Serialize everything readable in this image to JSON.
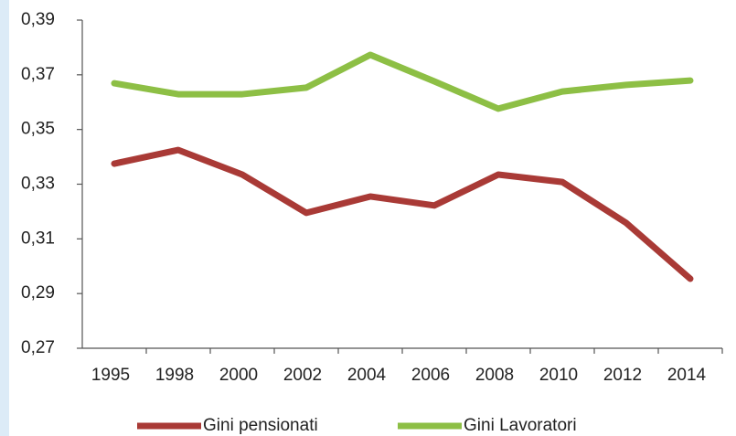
{
  "chart_data": {
    "type": "line",
    "categories": [
      "1995",
      "1998",
      "2000",
      "2002",
      "2004",
      "2006",
      "2008",
      "2010",
      "2012",
      "2014"
    ],
    "series": [
      {
        "name": "Gini pensionati",
        "color": "#a93a36",
        "values": [
          0.3375,
          0.3425,
          0.3335,
          0.3195,
          0.3255,
          0.3222,
          0.3335,
          0.3308,
          0.3158,
          0.2954
        ]
      },
      {
        "name": "Gini Lavoratori",
        "color": "#8dbf45",
        "values": [
          0.3669,
          0.3629,
          0.3629,
          0.3653,
          0.3773,
          0.3676,
          0.3576,
          0.3639,
          0.3663,
          0.3679
        ]
      }
    ],
    "ylim": [
      0.27,
      0.39
    ],
    "yticks": [
      {
        "value": 0.27,
        "label": "0,27"
      },
      {
        "value": 0.29,
        "label": "0,29"
      },
      {
        "value": 0.31,
        "label": "0,31"
      },
      {
        "value": 0.33,
        "label": "0,33"
      },
      {
        "value": 0.35,
        "label": "0,35"
      },
      {
        "value": 0.37,
        "label": "0,37"
      },
      {
        "value": 0.39,
        "label": "0,39"
      }
    ],
    "grid": false,
    "legend": "bottom"
  }
}
